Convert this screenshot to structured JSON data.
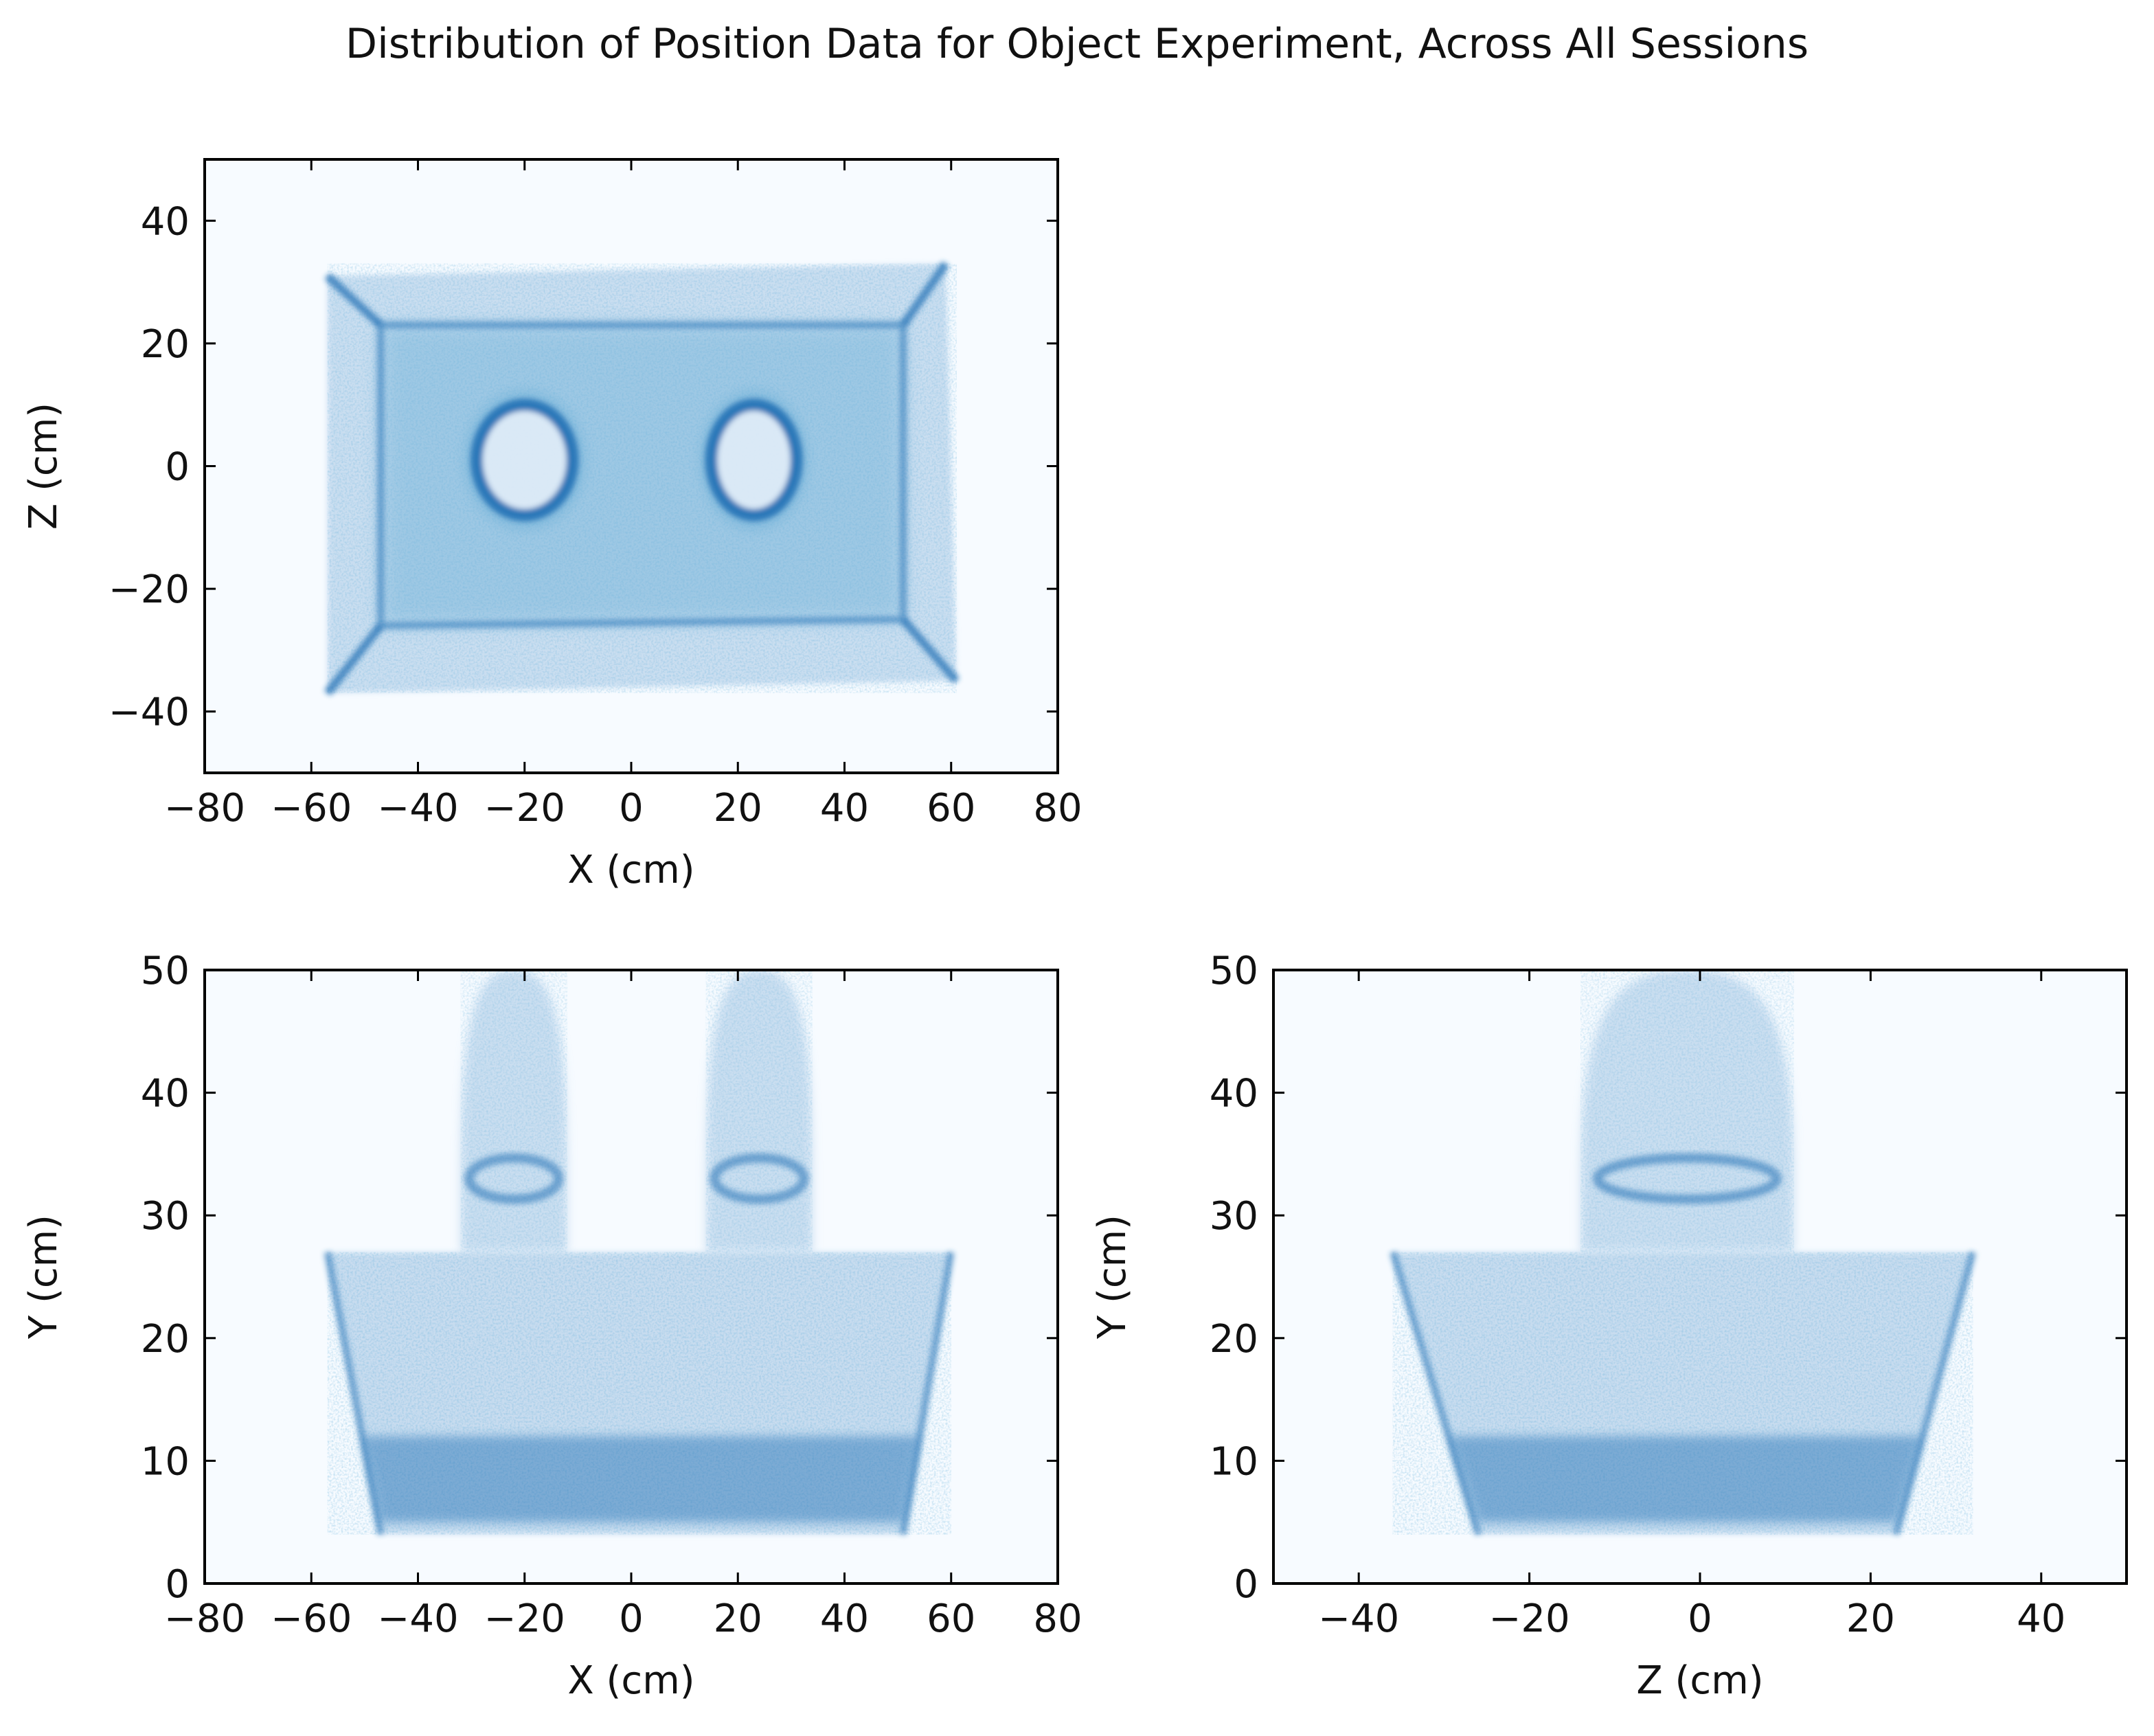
{
  "figure": {
    "suptitle": "Distribution of Position Data for Object Experiment, Across All Sessions"
  },
  "colors": {
    "background_low": "#f7fbff",
    "density_light": "#c6dbef",
    "density_mid": "#6baed6",
    "density_high": "#2171b5",
    "density_peak": "#08306b",
    "axes": "#000000"
  },
  "chart_data": [
    {
      "type": "heatmap",
      "panel": "top-left",
      "title": "",
      "xlabel": "X (cm)",
      "ylabel": "Z (cm)",
      "xlim": [
        -80,
        80
      ],
      "ylim": [
        -50,
        50
      ],
      "xticks": [
        -80,
        -60,
        -40,
        -20,
        0,
        20,
        40,
        60,
        80
      ],
      "yticks": [
        -40,
        -20,
        0,
        20,
        40
      ],
      "xticklabels": [
        "−80",
        "−60",
        "−40",
        "−20",
        "0",
        "20",
        "40",
        "60",
        "80"
      ],
      "yticklabels": [
        "−40",
        "−20",
        "0",
        "20",
        "40"
      ],
      "colormap": "Blues",
      "regions": {
        "arena_outer": [
          [
            -57,
            31
          ],
          [
            59,
            33
          ],
          [
            61,
            -35
          ],
          [
            -57,
            -37
          ]
        ],
        "arena_inner": [
          [
            -47,
            23
          ],
          [
            51,
            23
          ],
          [
            51,
            -25
          ],
          [
            -47,
            -26
          ]
        ],
        "objects": [
          {
            "cx": -20,
            "cy": 1,
            "rx": 9,
            "ry": 9
          },
          {
            "cx": 23,
            "cy": 1,
            "rx": 8,
            "ry": 9
          }
        ]
      }
    },
    {
      "type": "heatmap",
      "panel": "bottom-left",
      "title": "",
      "xlabel": "X (cm)",
      "ylabel": "Y (cm)",
      "xlim": [
        -80,
        80
      ],
      "ylim": [
        0,
        50
      ],
      "xticks": [
        -80,
        -60,
        -40,
        -20,
        0,
        20,
        40,
        60,
        80
      ],
      "yticks": [
        0,
        10,
        20,
        30,
        40,
        50
      ],
      "xticklabels": [
        "−80",
        "−60",
        "−40",
        "−20",
        "0",
        "20",
        "40",
        "60",
        "80"
      ],
      "yticklabels": [
        "0",
        "10",
        "20",
        "30",
        "40",
        "50"
      ],
      "colormap": "Blues",
      "regions": {
        "arena": [
          [
            -57,
            27
          ],
          [
            60,
            27
          ],
          [
            51,
            4
          ],
          [
            -47,
            4
          ]
        ],
        "floor_y": 4.5,
        "dense_band": [
          5,
          12
        ],
        "columns": [
          {
            "x0": -32,
            "x1": -12,
            "y_top": 50,
            "y_mid": 33
          },
          {
            "x0": 14,
            "x1": 34,
            "y_top": 50,
            "y_mid": 33
          }
        ]
      }
    },
    {
      "type": "heatmap",
      "panel": "bottom-right",
      "title": "",
      "xlabel": "Z (cm)",
      "ylabel": "Y (cm)",
      "xlim": [
        -50,
        50
      ],
      "ylim": [
        0,
        50
      ],
      "xticks": [
        -40,
        -20,
        0,
        20,
        40
      ],
      "yticks": [
        0,
        10,
        20,
        30,
        40,
        50
      ],
      "xticklabels": [
        "−40",
        "−20",
        "0",
        "20",
        "40"
      ],
      "yticklabels": [
        "0",
        "10",
        "20",
        "30",
        "40",
        "50"
      ],
      "colormap": "Blues",
      "regions": {
        "arena": [
          [
            -36,
            27
          ],
          [
            32,
            27
          ],
          [
            23,
            4
          ],
          [
            -26,
            4
          ]
        ],
        "floor_y": 4.5,
        "dense_band": [
          5,
          12
        ],
        "columns": [
          {
            "x0": -14,
            "x1": 11,
            "y_top": 50,
            "y_mid": 33
          }
        ]
      }
    }
  ]
}
